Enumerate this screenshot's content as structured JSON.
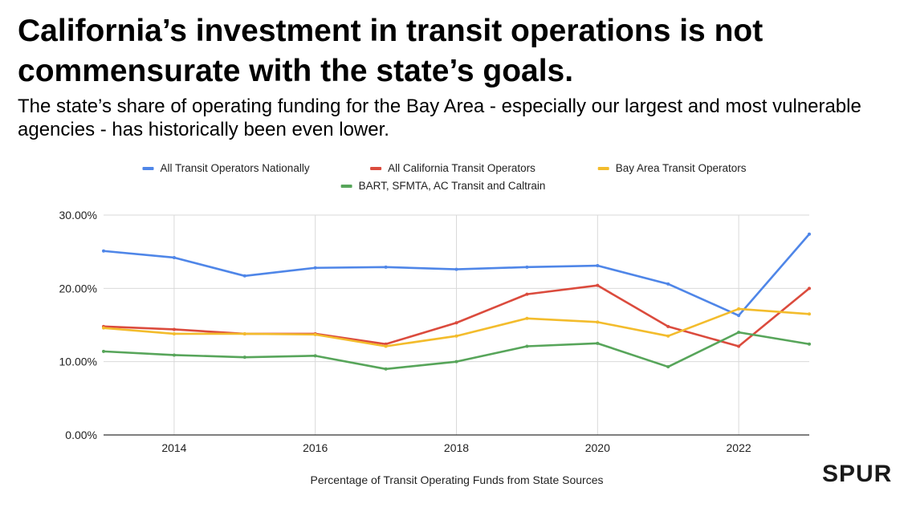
{
  "slide": {
    "title": "California’s investment in transit operations is not commensurate with the state’s goals.",
    "subtitle": "The state’s share of operating funding for the Bay Area - especially our largest and most vulnerable agencies - has historically been even lower.",
    "logo": "SPUR"
  },
  "colors": {
    "grid": "#d9d9d9",
    "axis_text": "#222222"
  },
  "chart_data": {
    "type": "line",
    "title": "",
    "xlabel": "Percentage of Transit Operating Funds from State Sources",
    "ylabel": "",
    "x": [
      2013,
      2014,
      2015,
      2016,
      2017,
      2018,
      2019,
      2020,
      2021,
      2022,
      2023
    ],
    "xlim": [
      2013,
      2023
    ],
    "ylim": [
      0,
      30
    ],
    "x_ticks": [
      2014,
      2016,
      2018,
      2020,
      2022
    ],
    "x_tick_labels": [
      "2014",
      "2016",
      "2018",
      "2020",
      "2022"
    ],
    "y_ticks": [
      0,
      10,
      20,
      30
    ],
    "y_tick_labels": [
      "0.00%",
      "10.00%",
      "20.00%",
      "30.00%"
    ],
    "grid": true,
    "legend_position": "top",
    "series": [
      {
        "name": "All Transit Operators Nationally",
        "color": "#4f86e8",
        "values": [
          25.1,
          24.2,
          21.7,
          22.8,
          22.9,
          22.6,
          22.9,
          23.1,
          20.6,
          16.3,
          27.4
        ]
      },
      {
        "name": "All California Transit Operators",
        "color": "#db4b3d",
        "values": [
          14.8,
          14.4,
          13.8,
          13.8,
          12.4,
          15.3,
          19.2,
          20.4,
          14.8,
          12.1,
          20.0
        ]
      },
      {
        "name": "Bay Area Transit Operators",
        "color": "#f3bc2c",
        "values": [
          14.6,
          13.8,
          13.8,
          13.7,
          12.1,
          13.5,
          15.9,
          15.4,
          13.5,
          17.2,
          16.5
        ]
      },
      {
        "name": "BART, SFMTA, AC Transit and Caltrain",
        "color": "#57a55a",
        "values": [
          11.4,
          10.9,
          10.6,
          10.8,
          9.0,
          10.0,
          12.1,
          12.5,
          9.3,
          14.0,
          12.4
        ]
      }
    ]
  }
}
